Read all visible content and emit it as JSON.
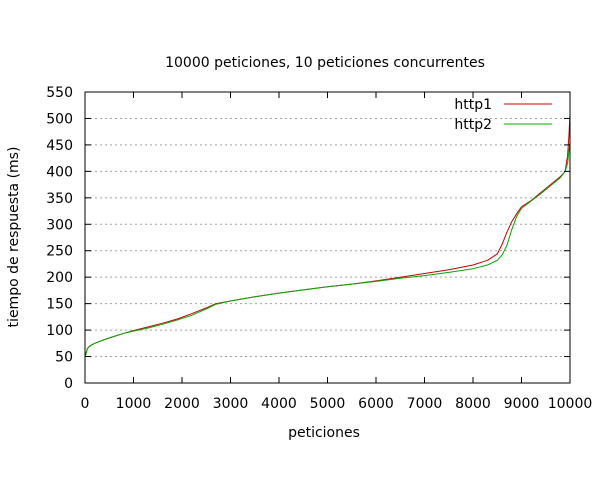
{
  "chart_data": {
    "type": "line",
    "title": "10000 peticiones, 10 peticiones concurrentes",
    "xlabel": "peticiones",
    "ylabel": "tiempo de respuesta (ms)",
    "xlim": [
      0,
      10000
    ],
    "ylim": [
      0,
      550
    ],
    "xticks": [
      0,
      1000,
      2000,
      3000,
      4000,
      5000,
      6000,
      7000,
      8000,
      9000,
      10000
    ],
    "yticks": [
      0,
      50,
      100,
      150,
      200,
      250,
      300,
      350,
      400,
      450,
      500,
      550
    ],
    "grid": "horizontal dotted",
    "legend_position": "top-right",
    "series": [
      {
        "name": "http1",
        "color": "#cc0000",
        "x": [
          0,
          50,
          100,
          200,
          400,
          600,
          800,
          1000,
          1300,
          1600,
          1900,
          2200,
          2500,
          2700,
          3000,
          3500,
          4000,
          4500,
          5000,
          5500,
          6000,
          6500,
          7000,
          7500,
          8000,
          8300,
          8500,
          8600,
          8700,
          8800,
          8900,
          9000,
          9200,
          9400,
          9600,
          9800,
          9900,
          9950,
          9980,
          10000
        ],
        "y": [
          50,
          65,
          70,
          75,
          82,
          88,
          94,
          99,
          106,
          113,
          121,
          131,
          142,
          150,
          155,
          163,
          170,
          176,
          182,
          187,
          193,
          200,
          207,
          214,
          223,
          232,
          244,
          262,
          285,
          305,
          320,
          333,
          345,
          360,
          375,
          390,
          400,
          430,
          470,
          510
        ]
      },
      {
        "name": "http2",
        "color": "#00aa00",
        "x": [
          0,
          50,
          100,
          200,
          400,
          600,
          800,
          1000,
          1300,
          1600,
          1900,
          2200,
          2500,
          2700,
          3000,
          3500,
          4000,
          4500,
          5000,
          5500,
          6000,
          6500,
          7000,
          7500,
          8000,
          8300,
          8500,
          8600,
          8700,
          8800,
          8900,
          9000,
          9200,
          9400,
          9600,
          9800,
          9900,
          9950,
          9980,
          10000
        ],
        "y": [
          48,
          65,
          70,
          75,
          82,
          88,
          94,
          98,
          104,
          111,
          119,
          128,
          140,
          149,
          155,
          163,
          170,
          176,
          182,
          187,
          192,
          198,
          203,
          209,
          216,
          223,
          232,
          242,
          260,
          290,
          315,
          330,
          344,
          358,
          373,
          388,
          400,
          415,
          440,
          455
        ]
      }
    ]
  }
}
